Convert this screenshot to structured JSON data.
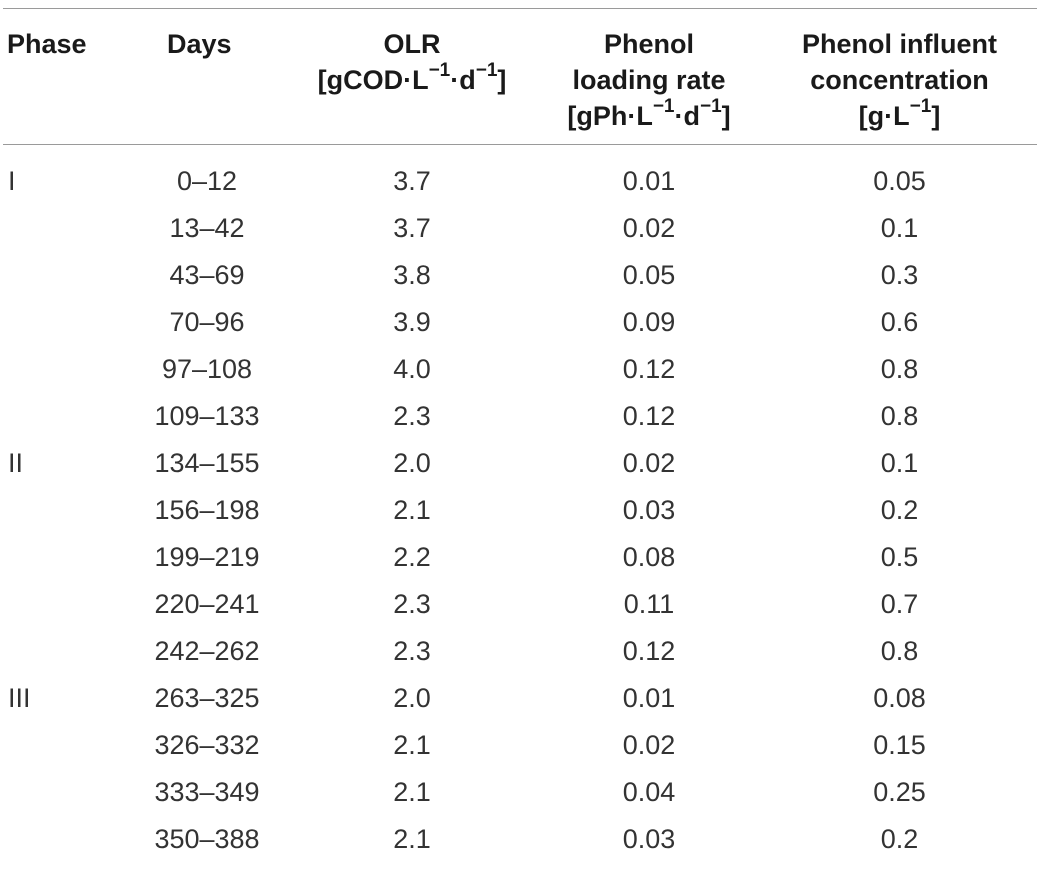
{
  "headers": {
    "phase": [
      "Phase"
    ],
    "days": [
      "Days"
    ],
    "olr": [
      "OLR",
      "[gCOD·L",
      "−1",
      "·d",
      "−1",
      "]"
    ],
    "plr": [
      "Phenol",
      "loading rate",
      "[gPh·L",
      "−1",
      "·d",
      "−1",
      "]"
    ],
    "pic": [
      "Phenol influent",
      "concentration",
      "[g·L",
      "−1",
      "]"
    ]
  },
  "rows": [
    {
      "phase": "I",
      "days": "0–12",
      "olr": "3.7",
      "plr": "0.01",
      "pic": "0.05"
    },
    {
      "phase": "",
      "days": "13–42",
      "olr": "3.7",
      "plr": "0.02",
      "pic": "0.1"
    },
    {
      "phase": "",
      "days": "43–69",
      "olr": "3.8",
      "plr": "0.05",
      "pic": "0.3"
    },
    {
      "phase": "",
      "days": "70–96",
      "olr": "3.9",
      "plr": "0.09",
      "pic": "0.6"
    },
    {
      "phase": "",
      "days": "97–108",
      "olr": "4.0",
      "plr": "0.12",
      "pic": "0.8"
    },
    {
      "phase": "",
      "days": "109–133",
      "olr": "2.3",
      "plr": "0.12",
      "pic": "0.8"
    },
    {
      "phase": "II",
      "days": "134–155",
      "olr": "2.0",
      "plr": "0.02",
      "pic": "0.1"
    },
    {
      "phase": "",
      "days": "156–198",
      "olr": "2.1",
      "plr": "0.03",
      "pic": "0.2"
    },
    {
      "phase": "",
      "days": "199–219",
      "olr": "2.2",
      "plr": "0.08",
      "pic": "0.5"
    },
    {
      "phase": "",
      "days": "220–241",
      "olr": "2.3",
      "plr": "0.11",
      "pic": "0.7"
    },
    {
      "phase": "",
      "days": "242–262",
      "olr": "2.3",
      "plr": "0.12",
      "pic": "0.8"
    },
    {
      "phase": "III",
      "days": "263–325",
      "olr": "2.0",
      "plr": "0.01",
      "pic": "0.08"
    },
    {
      "phase": "",
      "days": "326–332",
      "olr": "2.1",
      "plr": "0.02",
      "pic": "0.15"
    },
    {
      "phase": "",
      "days": "333–349",
      "olr": "2.1",
      "plr": "0.04",
      "pic": "0.25"
    },
    {
      "phase": "",
      "days": "350–388",
      "olr": "2.1",
      "plr": "0.03",
      "pic": "0.2"
    }
  ]
}
